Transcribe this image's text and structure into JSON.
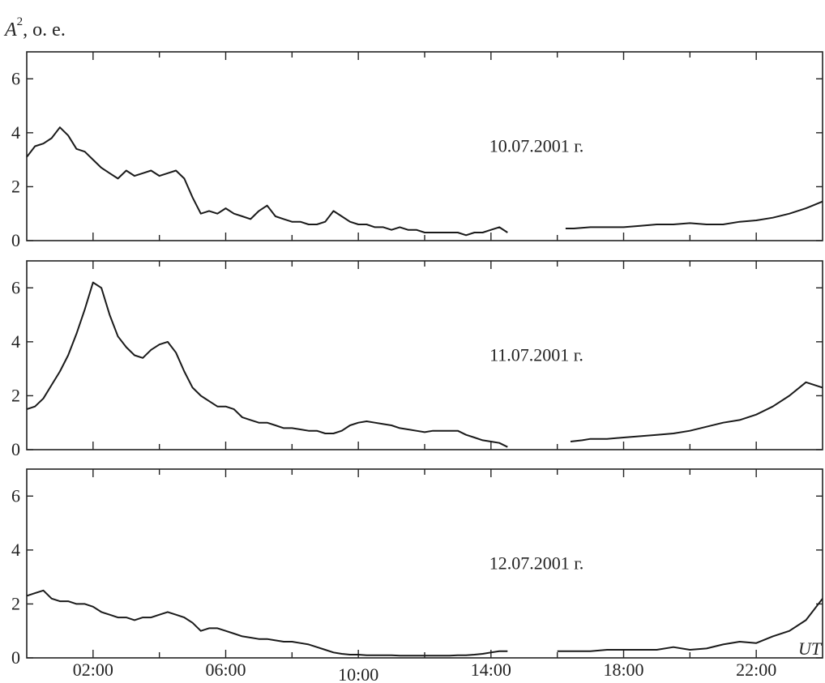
{
  "y_axis_label": {
    "symbol": "A",
    "superscript": "2",
    "units": ", о. е."
  },
  "x_axis_unit": "UT",
  "chart_data": [
    {
      "type": "line",
      "annotation": "10.07.2001 г.",
      "ylim": [
        0,
        7
      ],
      "xlim": [
        0,
        24
      ],
      "yticks": [
        "0",
        "2",
        "4",
        "6"
      ],
      "xtick_labels": [],
      "segments": [
        {
          "x": [
            0,
            0.25,
            0.5,
            0.75,
            1.0,
            1.25,
            1.5,
            1.75,
            2.0,
            2.25,
            2.5,
            2.75,
            3.0,
            3.25,
            3.5,
            3.75,
            4.0,
            4.25,
            4.5,
            4.75,
            5.0,
            5.25,
            5.5,
            5.75,
            6.0,
            6.25,
            6.5,
            6.75,
            7.0,
            7.25,
            7.5,
            7.75,
            8.0,
            8.25,
            8.5,
            8.75,
            9.0,
            9.25,
            9.5,
            9.75,
            10.0,
            10.25,
            10.5,
            10.75,
            11.0,
            11.25,
            11.5,
            11.75,
            12.0,
            12.25,
            12.5,
            12.75,
            13.0,
            13.25,
            13.5,
            13.75,
            14.0,
            14.25,
            14.5
          ],
          "y": [
            3.1,
            3.5,
            3.6,
            3.8,
            4.2,
            3.9,
            3.4,
            3.3,
            3.0,
            2.7,
            2.5,
            2.3,
            2.6,
            2.4,
            2.5,
            2.6,
            2.4,
            2.5,
            2.6,
            2.3,
            1.6,
            1.0,
            1.1,
            1.0,
            1.2,
            1.0,
            0.9,
            0.8,
            1.1,
            1.3,
            0.9,
            0.8,
            0.7,
            0.7,
            0.6,
            0.6,
            0.7,
            1.1,
            0.9,
            0.7,
            0.6,
            0.6,
            0.5,
            0.5,
            0.4,
            0.5,
            0.4,
            0.4,
            0.3,
            0.3,
            0.3,
            0.3,
            0.3,
            0.2,
            0.3,
            0.3,
            0.4,
            0.5,
            0.3
          ]
        },
        {
          "x": [
            16.25,
            16.5,
            17.0,
            17.5,
            18.0,
            18.5,
            19.0,
            19.5,
            20.0,
            20.5,
            21.0,
            21.5,
            22.0,
            22.5,
            23.0,
            23.5,
            24.0
          ],
          "y": [
            0.45,
            0.45,
            0.5,
            0.5,
            0.5,
            0.55,
            0.6,
            0.6,
            0.65,
            0.6,
            0.6,
            0.7,
            0.75,
            0.85,
            1.0,
            1.2,
            1.45
          ]
        }
      ]
    },
    {
      "type": "line",
      "annotation": "11.07.2001 г.",
      "ylim": [
        0,
        7
      ],
      "xlim": [
        0,
        24
      ],
      "yticks": [
        "0",
        "2",
        "4",
        "6"
      ],
      "xtick_labels": [],
      "segments": [
        {
          "x": [
            0,
            0.25,
            0.5,
            0.75,
            1.0,
            1.25,
            1.5,
            1.75,
            2.0,
            2.25,
            2.5,
            2.75,
            3.0,
            3.25,
            3.5,
            3.75,
            4.0,
            4.25,
            4.5,
            4.75,
            5.0,
            5.25,
            5.5,
            5.75,
            6.0,
            6.25,
            6.5,
            6.75,
            7.0,
            7.25,
            7.5,
            7.75,
            8.0,
            8.25,
            8.5,
            8.75,
            9.0,
            9.25,
            9.5,
            9.75,
            10.0,
            10.25,
            10.5,
            10.75,
            11.0,
            11.25,
            11.5,
            11.75,
            12.0,
            12.25,
            12.5,
            12.75,
            13.0,
            13.25,
            13.5,
            13.75,
            14.0,
            14.25,
            14.5
          ],
          "y": [
            1.5,
            1.6,
            1.9,
            2.4,
            2.9,
            3.5,
            4.3,
            5.2,
            6.2,
            6.0,
            5.0,
            4.2,
            3.8,
            3.5,
            3.4,
            3.7,
            3.9,
            4.0,
            3.6,
            2.9,
            2.3,
            2.0,
            1.8,
            1.6,
            1.6,
            1.5,
            1.2,
            1.1,
            1.0,
            1.0,
            0.9,
            0.8,
            0.8,
            0.75,
            0.7,
            0.7,
            0.6,
            0.6,
            0.7,
            0.9,
            1.0,
            1.05,
            1.0,
            0.95,
            0.9,
            0.8,
            0.75,
            0.7,
            0.65,
            0.7,
            0.7,
            0.7,
            0.7,
            0.55,
            0.45,
            0.35,
            0.3,
            0.25,
            0.1
          ]
        },
        {
          "x": [
            16.4,
            16.75,
            17.0,
            17.5,
            18.0,
            18.5,
            19.0,
            19.5,
            20.0,
            20.5,
            21.0,
            21.5,
            22.0,
            22.5,
            23.0,
            23.5,
            24.0
          ],
          "y": [
            0.3,
            0.35,
            0.4,
            0.4,
            0.45,
            0.5,
            0.55,
            0.6,
            0.7,
            0.85,
            1.0,
            1.1,
            1.3,
            1.6,
            2.0,
            2.5,
            2.3
          ]
        }
      ]
    },
    {
      "type": "line",
      "annotation": "12.07.2001 г.",
      "ylim": [
        0,
        7
      ],
      "xlim": [
        0,
        24
      ],
      "yticks": [
        "0",
        "2",
        "4",
        "6"
      ],
      "xtick_labels": [
        "02:00",
        "06:00",
        "10:00",
        "14:00",
        "18:00",
        "22:00"
      ],
      "segments": [
        {
          "x": [
            0,
            0.25,
            0.5,
            0.75,
            1.0,
            1.25,
            1.5,
            1.75,
            2.0,
            2.25,
            2.5,
            2.75,
            3.0,
            3.25,
            3.5,
            3.75,
            4.0,
            4.25,
            4.5,
            4.75,
            5.0,
            5.25,
            5.5,
            5.75,
            6.0,
            6.25,
            6.5,
            6.75,
            7.0,
            7.25,
            7.5,
            7.75,
            8.0,
            8.25,
            8.5,
            8.75,
            9.0,
            9.25,
            9.5,
            9.75,
            10.0,
            10.25,
            10.5,
            10.75,
            11.0,
            11.25,
            11.5,
            11.75,
            12.0,
            12.25,
            12.5,
            12.75,
            13.0,
            13.25,
            13.5,
            13.75,
            14.0,
            14.25,
            14.5
          ],
          "y": [
            2.3,
            2.4,
            2.5,
            2.2,
            2.1,
            2.1,
            2.0,
            2.0,
            1.9,
            1.7,
            1.6,
            1.5,
            1.5,
            1.4,
            1.5,
            1.5,
            1.6,
            1.7,
            1.6,
            1.5,
            1.3,
            1.0,
            1.1,
            1.1,
            1.0,
            0.9,
            0.8,
            0.75,
            0.7,
            0.7,
            0.65,
            0.6,
            0.6,
            0.55,
            0.5,
            0.4,
            0.3,
            0.2,
            0.15,
            0.12,
            0.12,
            0.1,
            0.1,
            0.1,
            0.1,
            0.08,
            0.08,
            0.08,
            0.08,
            0.08,
            0.08,
            0.08,
            0.1,
            0.1,
            0.12,
            0.15,
            0.2,
            0.25,
            0.25
          ]
        },
        {
          "x": [
            16.0,
            16.5,
            17.0,
            17.5,
            18.0,
            18.5,
            19.0,
            19.5,
            20.0,
            20.5,
            21.0,
            21.5,
            22.0,
            22.5,
            23.0,
            23.5,
            24.0
          ],
          "y": [
            0.25,
            0.25,
            0.25,
            0.3,
            0.3,
            0.3,
            0.3,
            0.4,
            0.3,
            0.35,
            0.5,
            0.6,
            0.55,
            0.8,
            1.0,
            1.4,
            2.2
          ]
        }
      ]
    }
  ]
}
